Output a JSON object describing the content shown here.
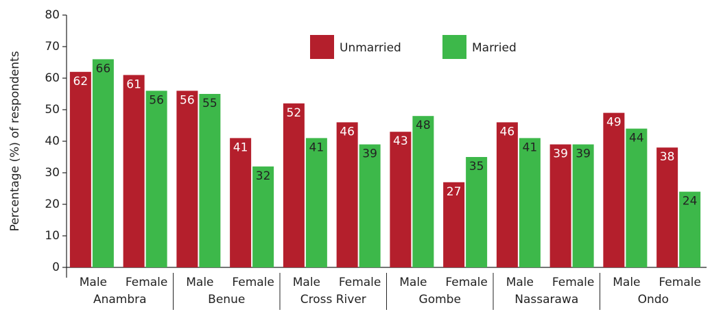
{
  "chart_data": {
    "type": "bar",
    "y_label": "Percentage (%) of respondents",
    "categories": [
      "Male",
      "Female",
      "Male",
      "Female",
      "Male",
      "Female",
      "Male",
      "Female",
      "Male",
      "Female",
      "Male",
      "Female"
    ],
    "groups": [
      "Anambra",
      "Benue",
      "Cross River",
      "Gombe",
      "Nassarawa",
      "Ondo"
    ],
    "series": [
      {
        "name": "Unmarried",
        "color": "#b41f2c",
        "values": [
          62,
          61,
          56,
          41,
          52,
          46,
          43,
          27,
          46,
          39,
          49,
          38
        ]
      },
      {
        "name": "Married",
        "color": "#3db84a",
        "values": [
          66,
          56,
          55,
          32,
          41,
          39,
          48,
          35,
          41,
          39,
          44,
          24
        ]
      }
    ],
    "ylim": [
      0,
      80
    ],
    "yticks": [
      0,
      10,
      20,
      30,
      40,
      50,
      60,
      70,
      80
    ]
  }
}
